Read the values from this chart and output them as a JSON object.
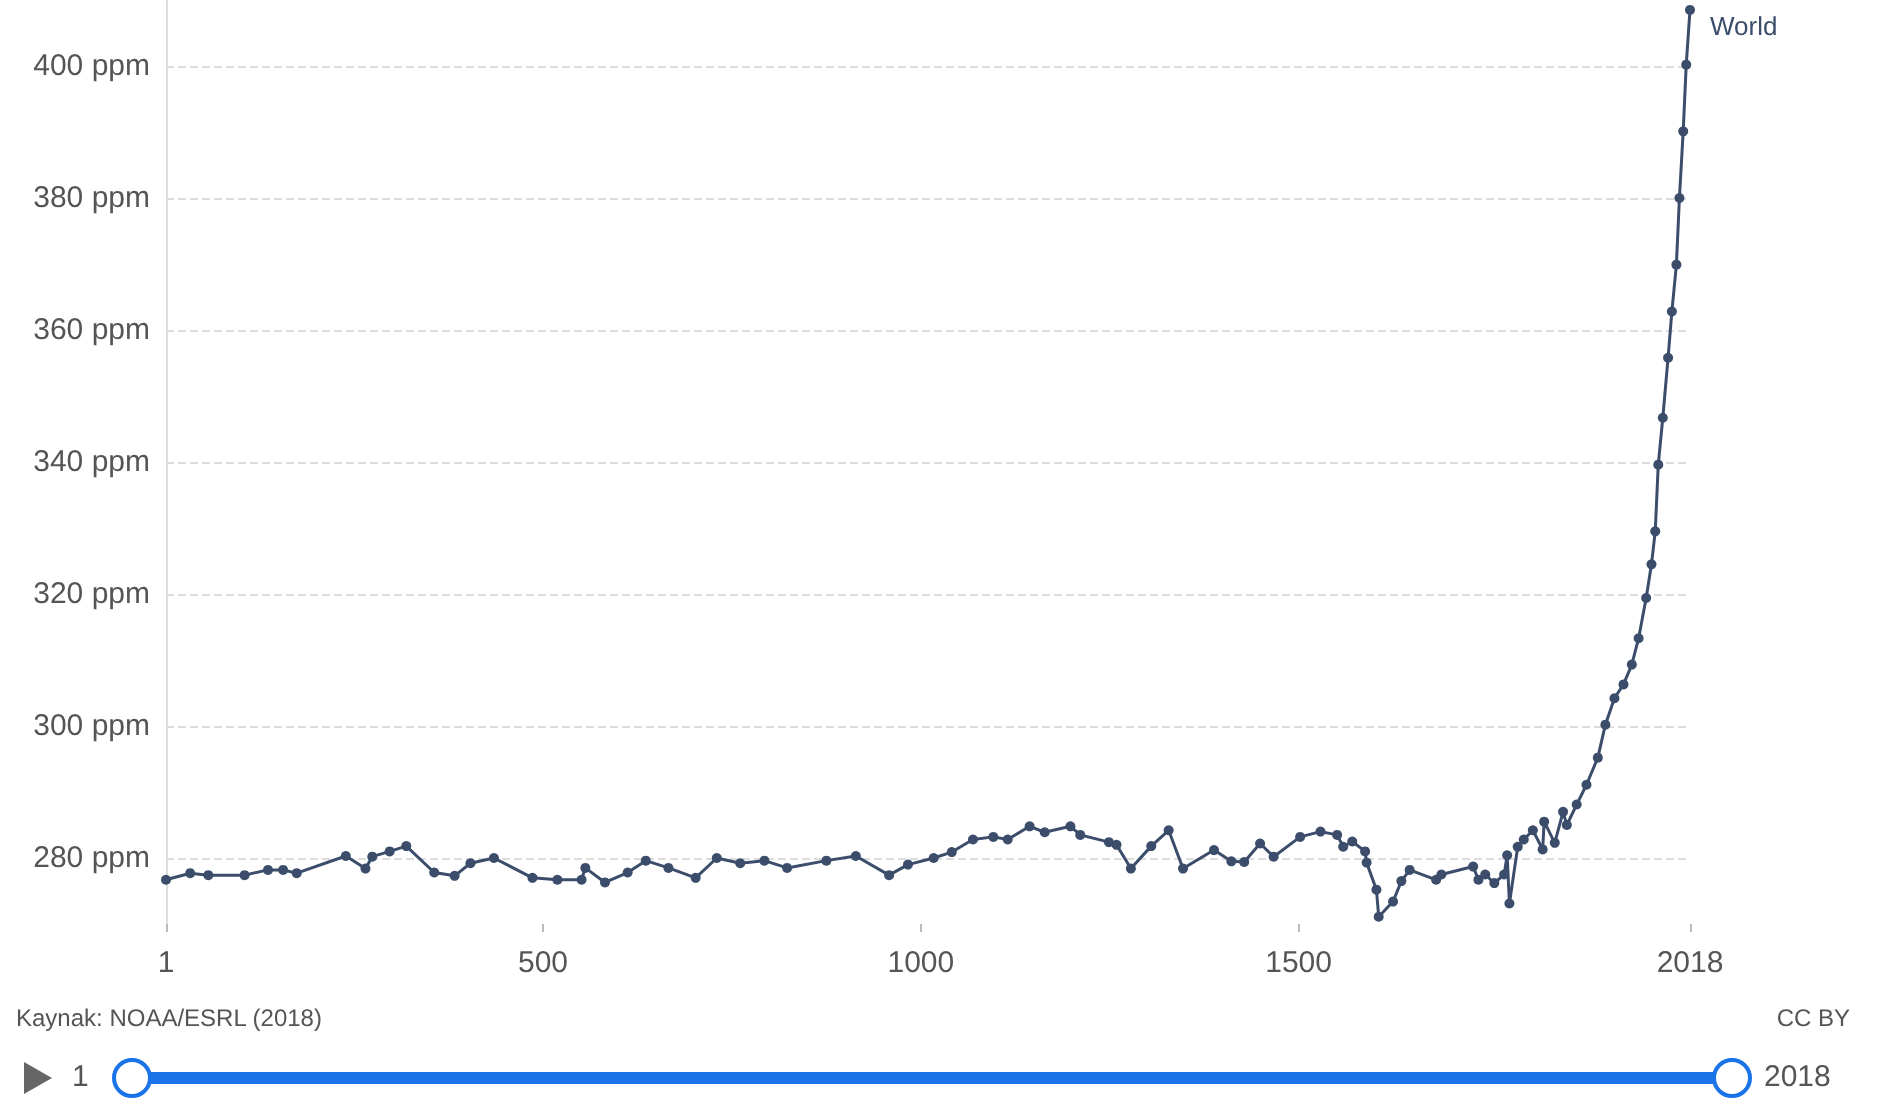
{
  "chart_data": {
    "type": "line",
    "x": [
      1,
      33,
      57,
      105,
      136,
      156,
      174,
      239,
      265,
      274,
      297,
      319,
      356,
      383,
      404,
      435,
      486,
      519,
      551,
      556,
      582,
      612,
      636,
      666,
      702,
      730,
      761,
      793,
      823,
      875,
      914,
      958,
      983,
      1017,
      1041,
      1069,
      1096,
      1115,
      1144,
      1164,
      1198,
      1211,
      1249,
      1259,
      1278,
      1305,
      1328,
      1347,
      1388,
      1411,
      1428,
      1449,
      1467,
      1502,
      1529,
      1551,
      1559,
      1571,
      1588,
      1590,
      1603,
      1606,
      1625,
      1636,
      1647,
      1682,
      1689,
      1731,
      1738,
      1747,
      1759,
      1772,
      1776,
      1779,
      1790,
      1798,
      1810,
      1823,
      1825,
      1839,
      1850,
      1855,
      1868,
      1881,
      1896,
      1906,
      1918,
      1930,
      1941,
      1950,
      1960,
      1967,
      1972,
      1976,
      1982,
      1989,
      1994,
      2000,
      2004,
      2009,
      2013,
      2018
    ],
    "series": [
      {
        "name": "World",
        "color": "#3b4d6b",
        "values": [
          276.7,
          277.7,
          277.4,
          277.4,
          278.2,
          278.2,
          277.7,
          280.3,
          278.4,
          280.2,
          281,
          281.8,
          277.8,
          277.3,
          279.2,
          280,
          277,
          276.7,
          276.7,
          278.5,
          276.3,
          277.8,
          279.6,
          278.5,
          277,
          280,
          279.2,
          279.6,
          278.5,
          279.6,
          280.3,
          277.4,
          279,
          280,
          280.9,
          282.8,
          283.2,
          282.8,
          284.8,
          283.9,
          284.8,
          283.5,
          282.4,
          282,
          278.4,
          281.8,
          284.2,
          278.4,
          281.2,
          279.5,
          279.4,
          282.2,
          280.2,
          283.2,
          284,
          283.5,
          281.7,
          282.5,
          281,
          279.3,
          275.2,
          271.1,
          273.4,
          276.5,
          278.2,
          276.7,
          277.5,
          278.7,
          276.7,
          277.5,
          276.2,
          277.5,
          280.4,
          273.1,
          281.7,
          282.8,
          284.2,
          281.3,
          285.5,
          282.3,
          287,
          285,
          288.1,
          291.1,
          295.2,
          300.2,
          304.2,
          306.3,
          309.3,
          313.3,
          319.4,
          324.5,
          329.5,
          339.6,
          346.7,
          355.8,
          362.8,
          369.9,
          380,
          390.1,
          400.2,
          408.5
        ]
      }
    ],
    "xlim": [
      1,
      2018
    ],
    "xticks": [
      1,
      500,
      1000,
      1500,
      2018
    ],
    "ylim": [
      270,
      410
    ],
    "yticks": [
      {
        "value": 280,
        "label": "280 ppm"
      },
      {
        "value": 300,
        "label": "300 ppm"
      },
      {
        "value": 320,
        "label": "320 ppm"
      },
      {
        "value": 340,
        "label": "340 ppm"
      },
      {
        "value": 360,
        "label": "360 ppm"
      },
      {
        "value": 380,
        "label": "380 ppm"
      },
      {
        "value": 400,
        "label": "400 ppm"
      }
    ],
    "grid": "y",
    "marker": "circle",
    "line_style": "solid",
    "legend": false,
    "annotations": [
      "Kaynak: NOAA/ESRL (2018)",
      "CC BY",
      "1",
      "2018"
    ]
  }
}
